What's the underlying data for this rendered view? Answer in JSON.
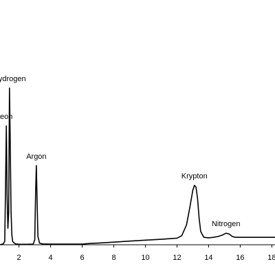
{
  "chart_data": {
    "type": "line",
    "xlim": [
      0.8,
      18.2
    ],
    "ylim": [
      0,
      1
    ],
    "x_ticks": [
      2,
      4,
      6,
      8,
      10,
      12,
      14,
      16,
      18
    ],
    "x_tick_labels": [
      "2",
      "4",
      "6",
      "8",
      "10",
      "12",
      "14",
      "16",
      "18"
    ],
    "grid": false,
    "series": [
      {
        "line_color": "#000000",
        "x": [
          0.8,
          1.0,
          1.1,
          1.15,
          1.2,
          1.25,
          1.3,
          1.35,
          1.4,
          1.45,
          1.5,
          1.55,
          1.6,
          1.7,
          1.8,
          2.0,
          2.5,
          2.9,
          3.0,
          3.05,
          3.1,
          3.15,
          3.2,
          3.3,
          3.5,
          4.0,
          5.0,
          6.0,
          6.5,
          7.0,
          8.0,
          9.0,
          10.0,
          11.0,
          12.0,
          12.3,
          12.6,
          12.8,
          13.0,
          13.1,
          13.2,
          13.3,
          13.4,
          13.5,
          13.7,
          14.0,
          14.3,
          14.6,
          14.9,
          15.1,
          15.3,
          15.5,
          15.7,
          16.0,
          16.5,
          17.0,
          18.2
        ],
        "y": [
          0.0,
          0.005,
          0.02,
          0.35,
          0.72,
          0.3,
          0.1,
          0.2,
          0.95,
          0.6,
          0.2,
          0.06,
          0.02,
          0.01,
          0.005,
          0.003,
          0.003,
          0.004,
          0.03,
          0.3,
          0.48,
          0.25,
          0.05,
          0.01,
          0.005,
          0.004,
          0.004,
          0.004,
          0.008,
          0.01,
          0.016,
          0.022,
          0.028,
          0.033,
          0.04,
          0.055,
          0.12,
          0.22,
          0.33,
          0.36,
          0.35,
          0.28,
          0.16,
          0.08,
          0.045,
          0.042,
          0.045,
          0.05,
          0.06,
          0.07,
          0.065,
          0.05,
          0.045,
          0.045,
          0.045,
          0.045,
          0.045
        ]
      }
    ],
    "annotations": [
      {
        "text": "eon",
        "x": 1.2,
        "y": 0.72
      },
      {
        "text": "Hydrogen",
        "x": 1.4,
        "y": 0.95
      },
      {
        "text": "Argon",
        "x": 3.1,
        "y": 0.48
      },
      {
        "text": "Krypton",
        "x": 13.1,
        "y": 0.36
      },
      {
        "text": "Nitrogen",
        "x": 15.1,
        "y": 0.07
      }
    ]
  }
}
